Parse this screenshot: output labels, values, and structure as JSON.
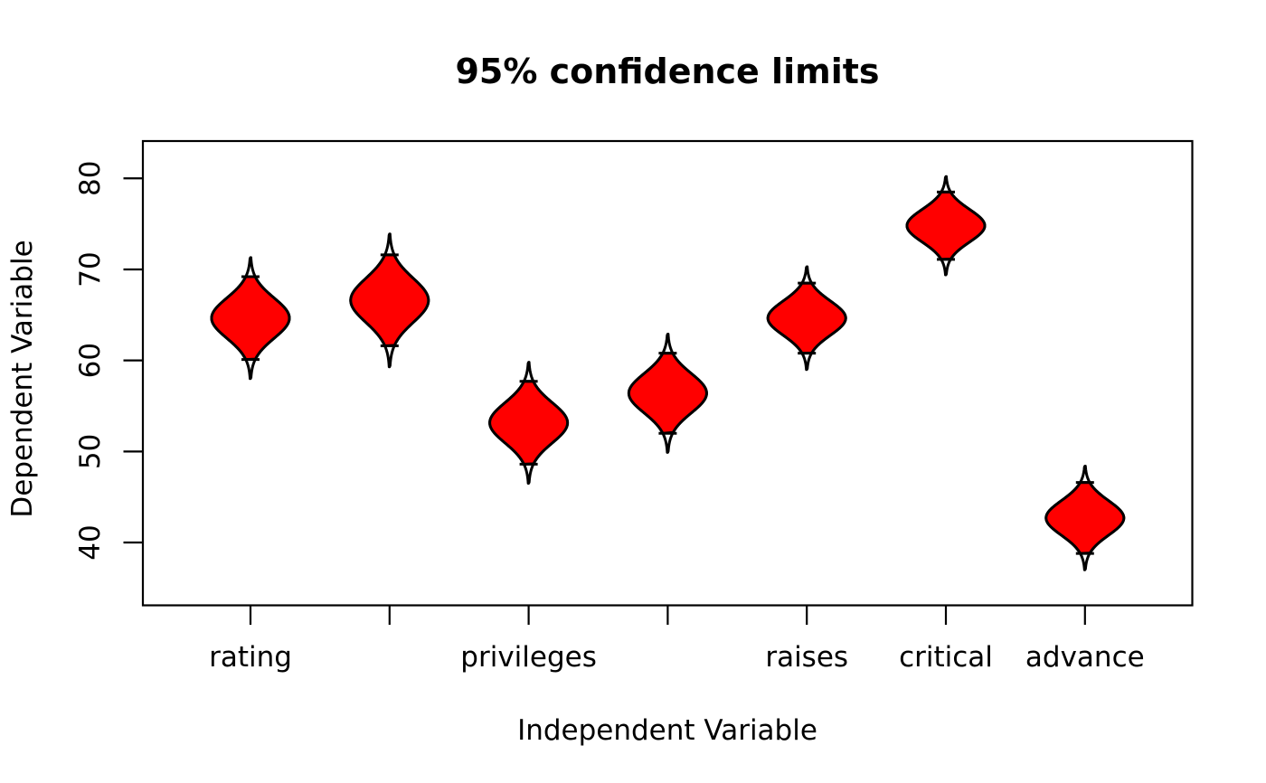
{
  "chart_data": {
    "type": "violin",
    "title": "95% confidence limits",
    "xlabel": "Independent Variable",
    "ylabel": "Dependent Variable",
    "y_ticks": [
      40,
      50,
      60,
      70,
      80
    ],
    "ylim": [
      33.1,
      84.1
    ],
    "grid": false,
    "legend": null,
    "fill_color": "#ff0000",
    "stroke_color": "#000000",
    "note": "Each glyph: red body spans the 95% confidence interval of the mean, widest at the mean; thin tips extend to mean ± 3 SE with cross-bars at the CI limits.",
    "points": [
      {
        "x": 1,
        "label": "rating",
        "mean": 64.65,
        "ci_low": 60.1,
        "ci_high": 69.2,
        "tip_low": 58.0,
        "tip_high": 71.3
      },
      {
        "x": 2,
        "label": "",
        "mean": 66.6,
        "ci_low": 61.6,
        "ci_high": 71.6,
        "tip_low": 59.3,
        "tip_high": 73.9
      },
      {
        "x": 3,
        "label": "privileges",
        "mean": 53.15,
        "ci_low": 48.6,
        "ci_high": 57.7,
        "tip_low": 46.5,
        "tip_high": 59.8
      },
      {
        "x": 4,
        "label": "",
        "mean": 56.4,
        "ci_low": 52.0,
        "ci_high": 60.8,
        "tip_low": 49.9,
        "tip_high": 62.9
      },
      {
        "x": 5,
        "label": "raises",
        "mean": 64.65,
        "ci_low": 60.8,
        "ci_high": 68.5,
        "tip_low": 59.0,
        "tip_high": 70.3
      },
      {
        "x": 6,
        "label": "critical",
        "mean": 74.8,
        "ci_low": 71.1,
        "ci_high": 78.5,
        "tip_low": 69.4,
        "tip_high": 80.2
      },
      {
        "x": 7,
        "label": "advance",
        "mean": 42.7,
        "ci_low": 38.8,
        "ci_high": 46.6,
        "tip_low": 37.0,
        "tip_high": 48.4
      }
    ]
  }
}
